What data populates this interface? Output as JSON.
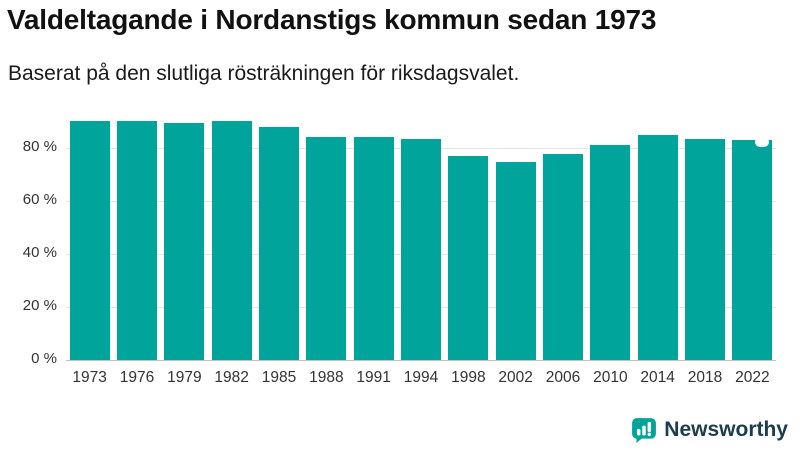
{
  "header": {
    "title": "Valdeltagande i Nordanstigs kommun sedan 1973",
    "subtitle": "Baserat på den slutliga rösträkningen för riksdagsvalet."
  },
  "chart_data": {
    "type": "bar",
    "title": "Valdeltagande i Nordanstigs kommun sedan 1973",
    "subtitle": "Baserat på den slutliga rösträkningen för riksdagsvalet.",
    "categories": [
      "1973",
      "1976",
      "1979",
      "1982",
      "1985",
      "1988",
      "1991",
      "1994",
      "1998",
      "2002",
      "2006",
      "2010",
      "2014",
      "2018",
      "2022"
    ],
    "values": [
      90.0,
      90.0,
      89.5,
      90.0,
      88.0,
      84.0,
      84.0,
      83.5,
      77.0,
      74.5,
      77.5,
      81.0,
      85.0,
      83.5,
      83.0
    ],
    "xlabel": "",
    "ylabel": "",
    "yticks": [
      0,
      20,
      40,
      60,
      80
    ],
    "ytick_suffix": " %",
    "ylim": [
      0,
      92
    ],
    "grid": true,
    "legend": "none",
    "bar_color": "#00a49a",
    "last_bar_marker": true
  },
  "footer": {
    "brand": "Newsworthy",
    "brand_color": "#1c3d4d",
    "accent_color": "#00a49a"
  }
}
